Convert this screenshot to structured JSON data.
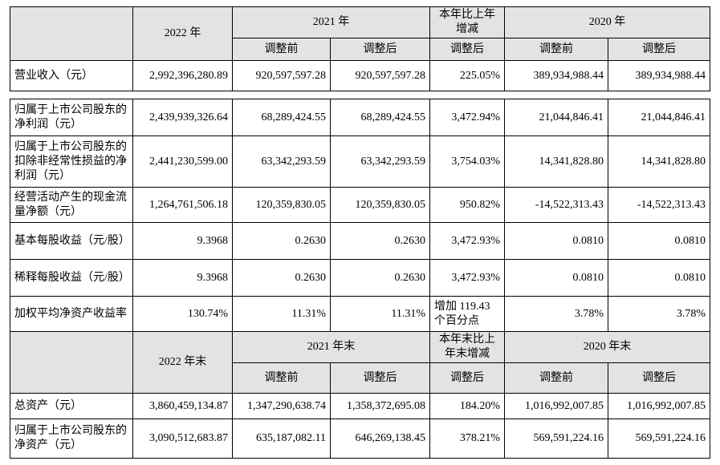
{
  "header1": {
    "year_a": "2022 年",
    "year_b": "2021 年",
    "change": "本年比上年增减",
    "year_c": "2020 年",
    "sub": [
      "调整前",
      "调整后",
      "调整后",
      "调整前",
      "调整后"
    ]
  },
  "rows1": [
    [
      "营业收入（元）",
      "2,992,396,280.89",
      "920,597,597.28",
      "920,597,597.28",
      "225.05%",
      "389,934,988.44",
      "389,934,988.44"
    ]
  ],
  "rows2": [
    [
      "归属于上市公司股东的净利润（元）",
      "2,439,939,326.64",
      "68,289,424.55",
      "68,289,424.55",
      "3,472.94%",
      "21,044,846.41",
      "21,044,846.41"
    ],
    [
      "归属于上市公司股东的扣除非经常性损益的净利润（元）",
      "2,441,230,599.00",
      "63,342,293.59",
      "63,342,293.59",
      "3,754.03%",
      "14,341,828.80",
      "14,341,828.80"
    ],
    [
      "经营活动产生的现金流量净额（元）",
      "1,264,761,506.18",
      "120,359,830.05",
      "120,359,830.05",
      "950.82%",
      "-14,522,313.43",
      "-14,522,313.43"
    ],
    [
      "基本每股收益（元/股）",
      "9.3968",
      "0.2630",
      "0.2630",
      "3,472.93%",
      "0.0810",
      "0.0810"
    ],
    [
      "稀释每股收益（元/股）",
      "9.3968",
      "0.2630",
      "0.2630",
      "3,472.93%",
      "0.0810",
      "0.0810"
    ],
    [
      "加权平均净资产收益率",
      "130.74%",
      "11.31%",
      "11.31%",
      "增加 119.43 个百分点",
      "3.78%",
      "3.78%"
    ]
  ],
  "header2": {
    "year_a": "2022 年末",
    "year_b": "2021 年末",
    "change": "本年末比上年末增减",
    "year_c": "2020 年末",
    "sub": [
      "调整前",
      "调整后",
      "调整后",
      "调整前",
      "调整后"
    ]
  },
  "rows3": [
    [
      "总资产（元）",
      "3,860,459,134.87",
      "1,347,290,638.74",
      "1,358,372,695.08",
      "184.20%",
      "1,016,992,007.85",
      "1,016,992,007.85"
    ],
    [
      "归属于上市公司股东的净资产（元）",
      "3,090,512,683.87",
      "635,187,082.11",
      "646,269,138.45",
      "378.21%",
      "569,591,224.16",
      "569,591,224.16"
    ]
  ]
}
